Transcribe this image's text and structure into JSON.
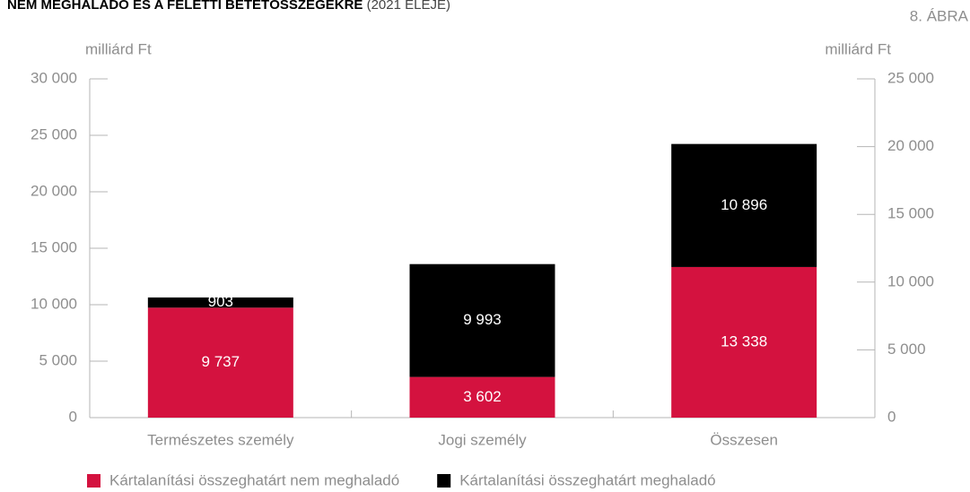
{
  "chart_data": {
    "type": "stacked_bar",
    "title": "NEM MEGHALADÓ ÉS A FELETTI BETÉTÖSSZEGEKRE",
    "title_note": "(2021 ELEJE)",
    "figure_label": "8. ÁBRA",
    "ylabel": "milliárd Ft",
    "y2label": "milliárd Ft",
    "categories": [
      "Természetes személy",
      "Jogi személy",
      "Összesen"
    ],
    "series": [
      {
        "name": "Kártalanítási összeghatárt nem meghaladó",
        "color": "#d4123f",
        "values": [
          9737,
          3602,
          13338
        ],
        "value_labels": [
          "9 737",
          "3 602",
          "13 338"
        ]
      },
      {
        "name": "Kártalanítási összeghatárt meghaladó",
        "color": "#000000",
        "values": [
          903,
          9993,
          10896
        ],
        "value_labels": [
          "903",
          "9 993",
          "10 896"
        ]
      }
    ],
    "ylim": [
      0,
      30000
    ],
    "yticks": [
      0,
      {
        "value": 5000,
        "label": "5 000"
      },
      {
        "value": 10000,
        "label": "10 000"
      },
      {
        "value": 15000,
        "label": "15 000"
      },
      {
        "value": 20000,
        "label": "20 000"
      },
      {
        "value": 25000,
        "label": "25 000"
      },
      {
        "value": 30000,
        "label": "30 000"
      }
    ],
    "y2lim": [
      0,
      25000
    ],
    "y2ticks": [
      0,
      {
        "value": 5000,
        "label": "5 000"
      },
      {
        "value": 10000,
        "label": "10 000"
      },
      {
        "value": 15000,
        "label": "15 000"
      },
      {
        "value": 20000,
        "label": "20 000"
      },
      {
        "value": 25000,
        "label": "25 000"
      }
    ],
    "legend": "bottom"
  }
}
